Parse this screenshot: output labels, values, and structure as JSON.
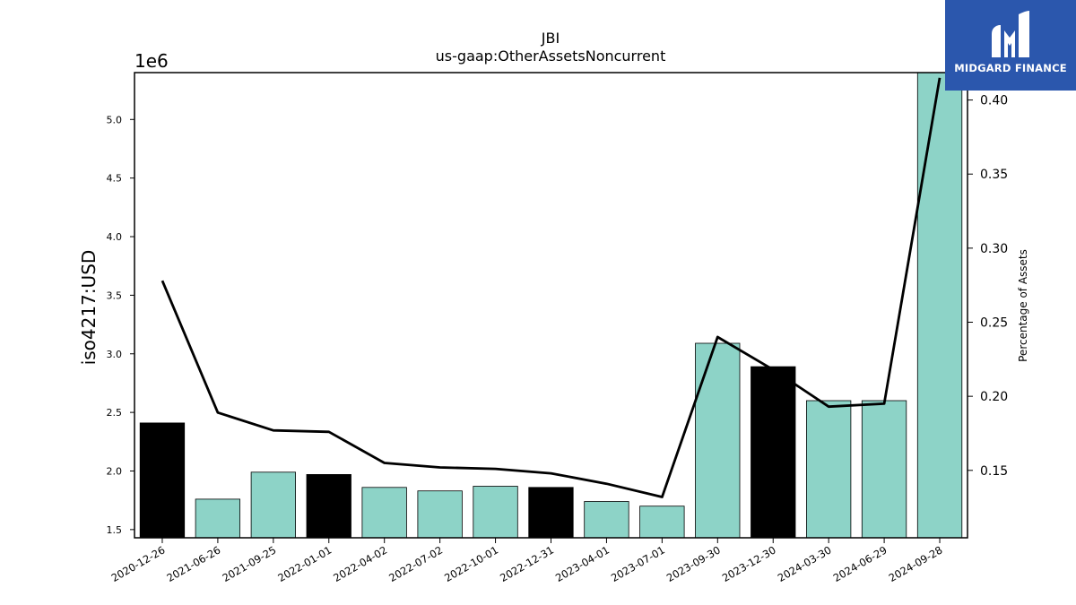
{
  "chart_data": {
    "type": "bar",
    "title": "JBI",
    "subtitle": "us-gaap:OtherAssetsNoncurrent",
    "ylabel": "iso4217:USD",
    "y_offset_label": "1e6",
    "y2label": "Percentage of Assets",
    "categories": [
      "2020-12-26",
      "2021-06-26",
      "2021-09-25",
      "2022-01-01",
      "2022-04-02",
      "2022-07-02",
      "2022-10-01",
      "2022-12-31",
      "2023-04-01",
      "2023-07-01",
      "2023-09-30",
      "2023-12-30",
      "2024-03-30",
      "2024-06-29",
      "2024-09-28"
    ],
    "series": [
      {
        "values": [
          2410000,
          1760000,
          1990000,
          1970000,
          1860000,
          1830000,
          1870000,
          1860000,
          1740000,
          1700000,
          3090000,
          2890000,
          2600000,
          2600000,
          5400000
        ],
        "highlight": [
          true,
          false,
          false,
          true,
          false,
          false,
          false,
          true,
          false,
          false,
          false,
          true,
          false,
          false,
          false
        ],
        "color": "#8dd3c7",
        "highlight_color": "#000000"
      },
      {
        "values": [
          0.278,
          0.189,
          0.177,
          0.176,
          0.155,
          0.152,
          0.151,
          0.148,
          0.141,
          0.132,
          0.24,
          0.218,
          0.193,
          0.195,
          0.415
        ],
        "color": "#000000",
        "axis": "right",
        "type": "line"
      }
    ],
    "ylim": [
      1430000,
      5400000
    ],
    "yticks": [
      1.5,
      2.0,
      2.5,
      3.0,
      3.5,
      4.0,
      4.5,
      5.0
    ],
    "y2lim": [
      0.1045,
      0.4185
    ],
    "y2ticks": [
      0.15,
      0.2,
      0.25,
      0.3,
      0.35,
      0.4
    ],
    "grid": false
  },
  "logo": {
    "text": "MIDGARD FINANCE"
  }
}
